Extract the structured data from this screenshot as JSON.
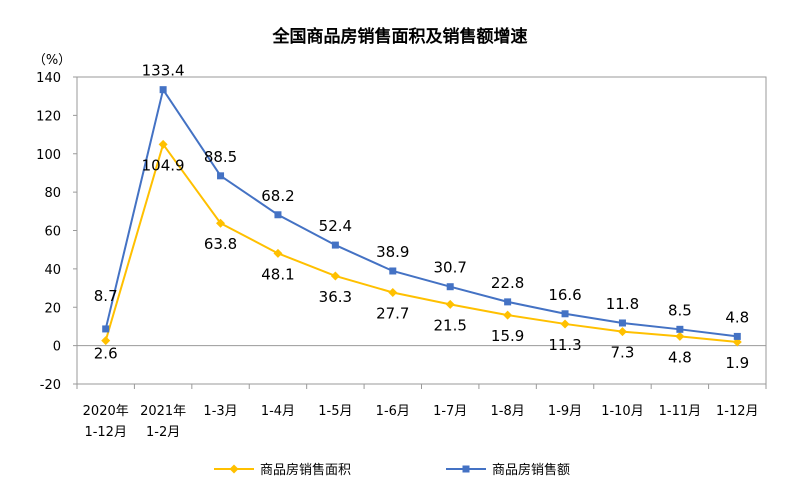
{
  "chart_data": {
    "type": "line",
    "title": "全国商品房销售面积及销售额增速",
    "ylabel": "（%）",
    "xlabel": "",
    "categories": [
      [
        "2020年",
        "1-12月"
      ],
      [
        "2021年",
        "1-2月"
      ],
      [
        "1-3月"
      ],
      [
        "1-4月"
      ],
      [
        "1-5月"
      ],
      [
        "1-6月"
      ],
      [
        "1-7月"
      ],
      [
        "1-8月"
      ],
      [
        "1-9月"
      ],
      [
        "1-10月"
      ],
      [
        "1-11月"
      ],
      [
        "1-12月"
      ]
    ],
    "ylim": [
      -20,
      140
    ],
    "yticks": [
      -20,
      0,
      20,
      40,
      60,
      80,
      100,
      120,
      140
    ],
    "grid": false,
    "legend_position": "bottom",
    "series": [
      {
        "name": "商品房销售面积",
        "color": "#FFC000",
        "marker": "diamond",
        "values": [
          2.6,
          104.9,
          63.8,
          48.1,
          36.3,
          27.7,
          21.5,
          15.9,
          11.3,
          7.3,
          4.8,
          1.9
        ],
        "labels": [
          "2.6",
          "104.9",
          "63.8",
          "48.1",
          "36.3",
          "27.7",
          "21.5",
          "15.9",
          "11.3",
          "7.3",
          "4.8",
          "1.9"
        ]
      },
      {
        "name": "商品房销售额",
        "color": "#4472C4",
        "marker": "square",
        "values": [
          8.7,
          133.4,
          88.5,
          68.2,
          52.4,
          38.9,
          30.7,
          22.8,
          16.6,
          11.8,
          8.5,
          4.8
        ],
        "labels": [
          "8.7",
          "133.4",
          "88.5",
          "68.2",
          "52.4",
          "38.9",
          "30.7",
          "22.8",
          "16.6",
          "11.8",
          "8.5",
          "4.8"
        ]
      }
    ]
  }
}
